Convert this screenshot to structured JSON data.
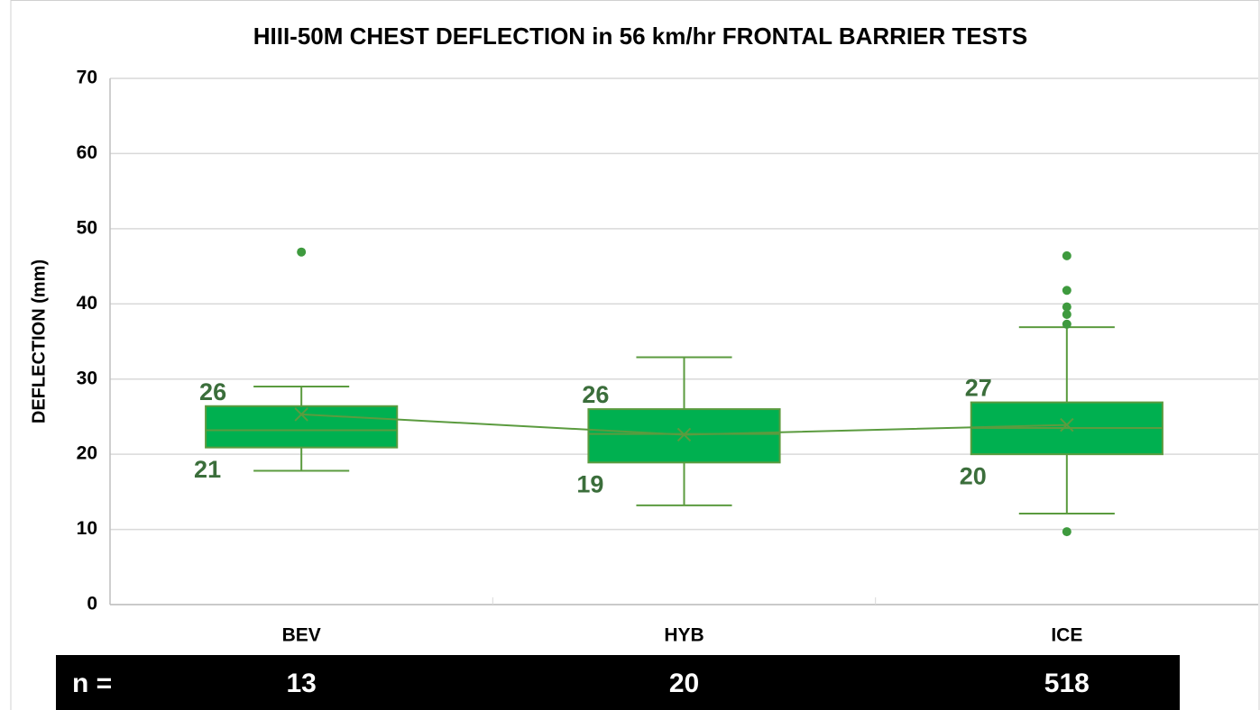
{
  "chart_data": {
    "type": "box",
    "title": "HIII-50M CHEST DEFLECTION in 56 km/hr FRONTAL BARRIER TESTS",
    "y_label": "DEFLECTION (mm)",
    "categories": [
      "BEV",
      "HYB",
      "ICE"
    ],
    "boxes": [
      {
        "min": 17.8,
        "q1": 20.9,
        "median": 23.2,
        "q3": 26.4,
        "max": 29.0,
        "mean": 25.3,
        "outliers": [
          46.9
        ],
        "q1_label": "21",
        "q3_label": "26"
      },
      {
        "min": 13.2,
        "q1": 18.9,
        "median": 22.7,
        "q3": 26.0,
        "max": 32.9,
        "mean": 22.6,
        "outliers": [],
        "q1_label": "19",
        "q3_label": "26"
      },
      {
        "min": 12.1,
        "q1": 20.0,
        "median": 23.5,
        "q3": 26.9,
        "max": 36.9,
        "mean": 23.9,
        "outliers": [
          9.7,
          37.3,
          38.6,
          39.6,
          41.8,
          46.4
        ],
        "q1_label": "20",
        "q3_label": "27"
      }
    ],
    "color": "#00b050",
    "line_color": "#5b9b3f",
    "label_color": "#3b6e3b",
    "ylim": [
      0,
      70
    ],
    "yticks": [
      0,
      10,
      20,
      30,
      40,
      50,
      60,
      70
    ],
    "grid": true,
    "n_label": "n =",
    "n": [
      13,
      20,
      518
    ]
  }
}
